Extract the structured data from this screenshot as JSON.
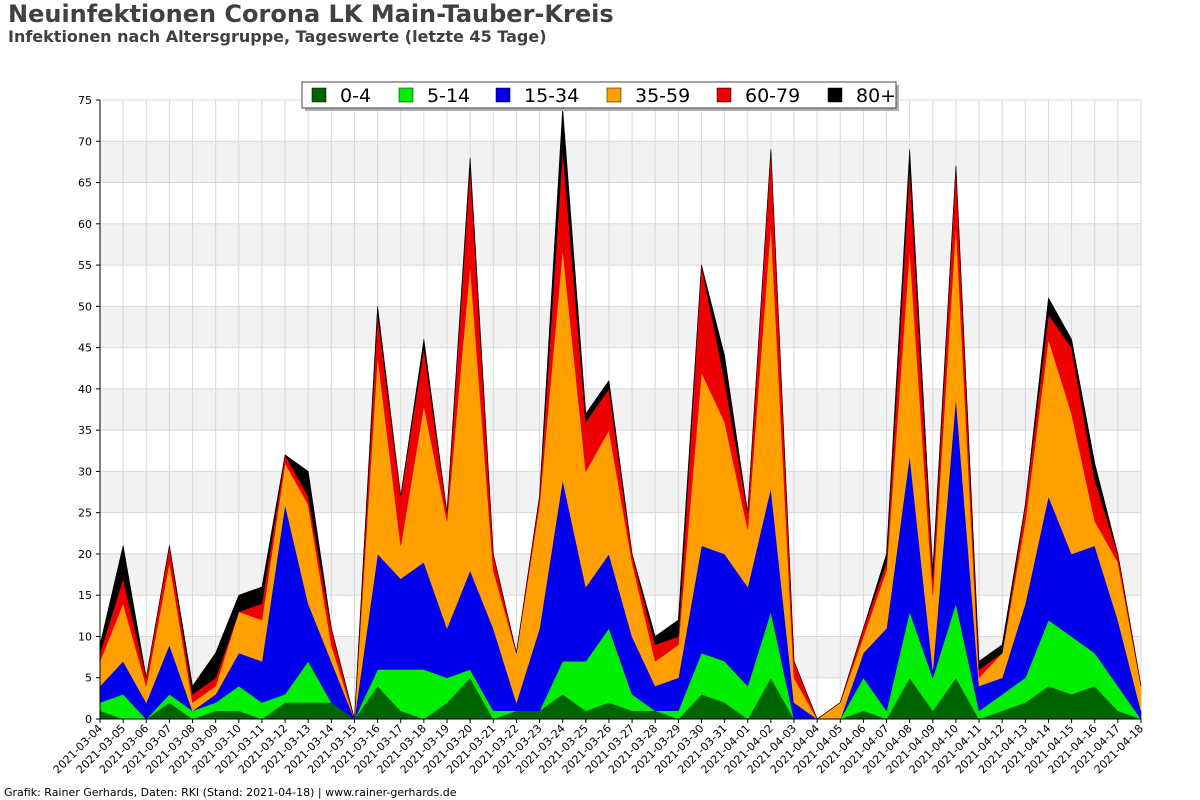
{
  "header": {
    "title": "Neuinfektionen Corona LK Main-Tauber-Kreis",
    "subtitle": "Infektionen nach Altersgruppe, Tageswerte (letzte 45 Tage)"
  },
  "footer": {
    "text": "Grafik: Rainer Gerhards, Daten: RKI (Stand: 2021-04-18) | www.rainer-gerhards.de"
  },
  "chart_data": {
    "type": "area",
    "stacked": true,
    "title": "Neuinfektionen Corona LK Main-Tauber-Kreis",
    "subtitle": "Infektionen nach Altersgruppe, Tageswerte (letzte 45 Tage)",
    "xlabel": "",
    "ylabel": "",
    "ylim": [
      0,
      75
    ],
    "yticks": [
      0,
      5,
      10,
      15,
      20,
      25,
      30,
      35,
      40,
      45,
      50,
      55,
      60,
      65,
      70,
      75
    ],
    "grid": true,
    "legend_position": "top",
    "categories": [
      "2021-03-04",
      "2021-03-05",
      "2021-03-06",
      "2021-03-07",
      "2021-03-08",
      "2021-03-09",
      "2021-03-10",
      "2021-03-11",
      "2021-03-12",
      "2021-03-13",
      "2021-03-14",
      "2021-03-15",
      "2021-03-16",
      "2021-03-17",
      "2021-03-18",
      "2021-03-19",
      "2021-03-20",
      "2021-03-21",
      "2021-03-22",
      "2021-03-23",
      "2021-03-24",
      "2021-03-25",
      "2021-03-26",
      "2021-03-27",
      "2021-03-28",
      "2021-03-29",
      "2021-03-30",
      "2021-03-31",
      "2021-04-01",
      "2021-04-02",
      "2021-04-03",
      "2021-04-04",
      "2021-04-05",
      "2021-04-06",
      "2021-04-07",
      "2021-04-08",
      "2021-04-09",
      "2021-04-10",
      "2021-04-11",
      "2021-04-12",
      "2021-04-13",
      "2021-04-14",
      "2021-04-15",
      "2021-04-16",
      "2021-04-17",
      "2021-04-18"
    ],
    "series": [
      {
        "name": "0-4",
        "color": "#006400",
        "values": [
          1,
          0,
          0,
          2,
          0,
          1,
          1,
          0,
          2,
          2,
          2,
          0,
          4,
          1,
          0,
          2,
          5,
          0,
          1,
          1,
          3,
          1,
          2,
          1,
          1,
          0,
          3,
          2,
          0,
          5,
          0,
          0,
          0,
          1,
          0,
          5,
          1,
          5,
          0,
          1,
          2,
          4,
          3,
          4,
          1,
          0
        ]
      },
      {
        "name": "5-14",
        "color": "#00ee00",
        "values": [
          1,
          3,
          0,
          1,
          1,
          1,
          3,
          2,
          1,
          5,
          0,
          0,
          2,
          5,
          6,
          3,
          1,
          1,
          0,
          0,
          4,
          6,
          9,
          2,
          0,
          1,
          5,
          5,
          4,
          8,
          0,
          0,
          0,
          4,
          1,
          8,
          4,
          9,
          1,
          2,
          3,
          8,
          7,
          4,
          3,
          0
        ]
      },
      {
        "name": "15-34",
        "color": "#0000ee",
        "values": [
          2,
          4,
          2,
          6,
          0,
          1,
          4,
          5,
          23,
          7,
          5,
          0,
          14,
          11,
          13,
          6,
          12,
          10,
          1,
          10,
          22,
          9,
          9,
          7,
          3,
          4,
          13,
          13,
          12,
          15,
          2,
          0,
          0,
          3,
          10,
          19,
          1,
          25,
          3,
          2,
          9,
          15,
          10,
          13,
          8,
          1
        ]
      },
      {
        "name": "35-59",
        "color": "#ffa000",
        "values": [
          3,
          7,
          2,
          10,
          1,
          1,
          5,
          5,
          5,
          12,
          2,
          0,
          24,
          4,
          19,
          13,
          37,
          7,
          6,
          15,
          28,
          14,
          15,
          9,
          3,
          4,
          21,
          16,
          7,
          32,
          3,
          0,
          2,
          2,
          7,
          25,
          9,
          21,
          1,
          3,
          10,
          19,
          17,
          3,
          7,
          3
        ]
      },
      {
        "name": "60-79",
        "color": "#ee0000",
        "values": [
          1,
          3,
          1,
          2,
          1,
          1,
          0,
          2,
          1,
          1,
          2,
          0,
          5,
          6,
          7,
          1,
          12,
          2,
          0,
          1,
          12,
          6,
          5,
          1,
          2,
          1,
          13,
          5,
          2,
          9,
          2,
          0,
          0,
          1,
          1,
          10,
          2,
          7,
          1,
          0,
          2,
          3,
          8,
          5,
          1,
          0
        ]
      },
      {
        "name": "80+",
        "color": "#000000",
        "values": [
          1,
          4,
          0,
          0,
          1,
          3,
          2,
          2,
          0,
          3,
          0,
          0,
          1,
          0,
          1,
          0,
          1,
          0,
          0,
          0,
          5,
          1,
          1,
          0,
          1,
          2,
          0,
          3,
          0,
          0,
          0,
          0,
          0,
          0,
          1,
          2,
          1,
          0,
          1,
          1,
          0,
          2,
          1,
          2,
          0,
          0
        ]
      }
    ]
  }
}
